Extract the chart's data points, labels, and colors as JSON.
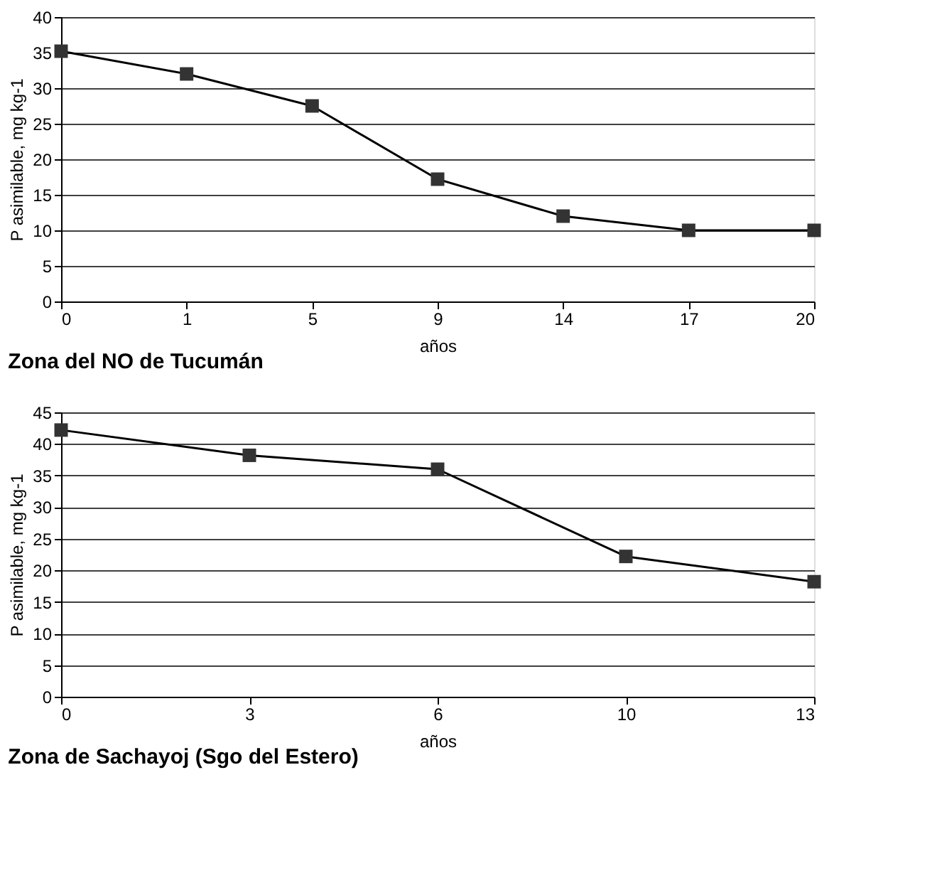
{
  "chart_data": [
    {
      "type": "line",
      "title": "Zona del NO de Tucumán",
      "xlabel": "años",
      "ylabel": "P asimilable, mg kg-1",
      "categories": [
        "0",
        "1",
        "5",
        "9",
        "14",
        "17",
        "20"
      ],
      "series": [
        {
          "color": "#000000",
          "values": [
            35.2,
            32,
            27.5,
            17.2,
            12,
            10,
            10
          ]
        }
      ],
      "ylim": [
        0,
        40
      ],
      "yticks": [
        0,
        5,
        10,
        15,
        20,
        25,
        30,
        35,
        40
      ],
      "grid": "y",
      "marker": "square",
      "line_style": "solid"
    },
    {
      "type": "line",
      "title": "Zona de Sachayoj (Sgo del Estero)",
      "xlabel": "años",
      "ylabel": "P asimilable, mg kg-1",
      "categories": [
        "0",
        "3",
        "6",
        "10",
        "13"
      ],
      "series": [
        {
          "color": "#000000",
          "values": [
            42.2,
            38.2,
            36,
            22.2,
            18.2
          ]
        }
      ],
      "ylim": [
        0,
        45
      ],
      "yticks": [
        0,
        5,
        10,
        15,
        20,
        25,
        30,
        35,
        40,
        45
      ],
      "grid": "y",
      "marker": "square",
      "line_style": "solid"
    }
  ]
}
